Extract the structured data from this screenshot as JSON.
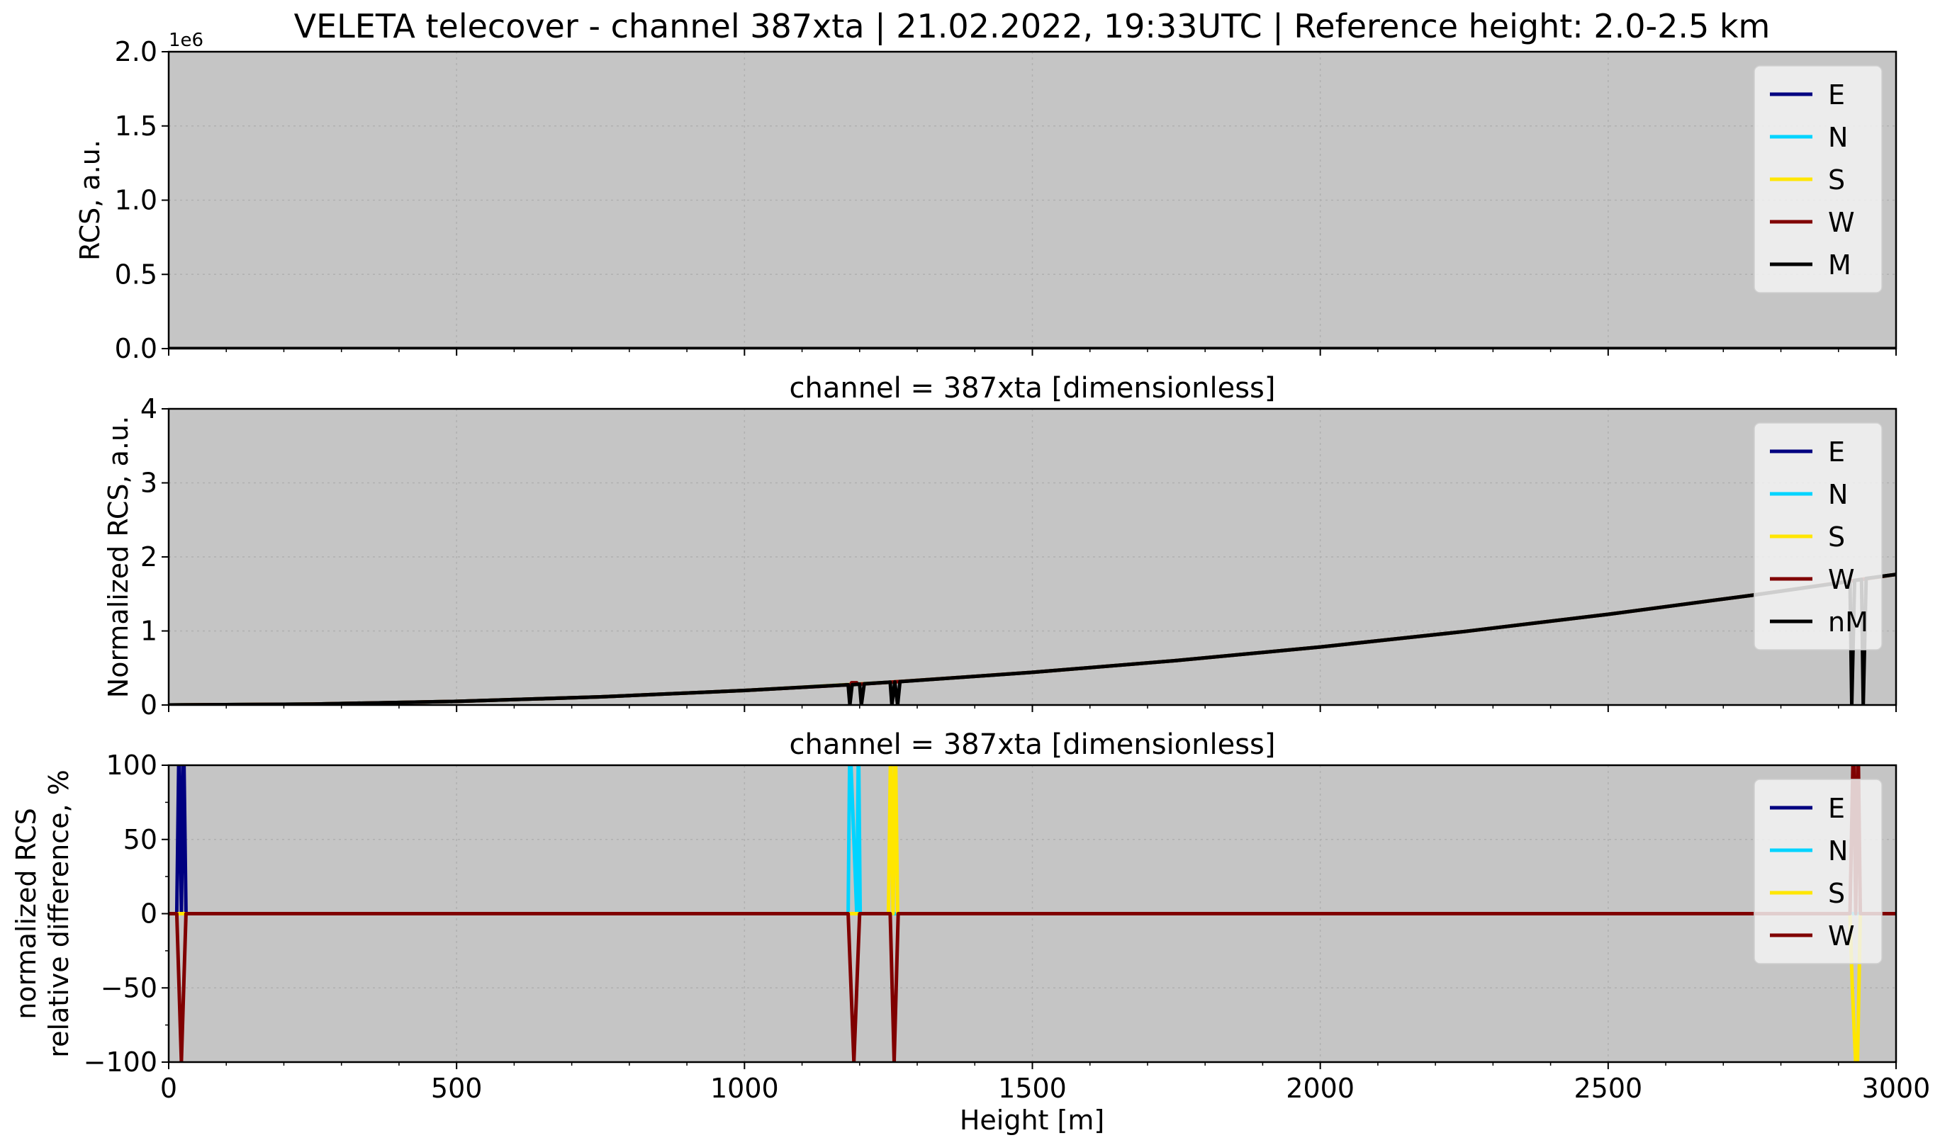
{
  "figure": {
    "title": "VELETA telecover - channel 387xta | 21.02.2022, 19:33UTC | Reference height: 2.0-2.5 km",
    "xlabel": "Height [m]"
  },
  "colors": {
    "E": "#000080",
    "N": "#00d4ff",
    "S": "#ffe600",
    "W": "#800000",
    "M": "#000000",
    "plot_bg": "#c5c5c5",
    "legend_bg": "#f2f2f2",
    "grid": "#b0b0b0"
  },
  "chart_data": [
    {
      "type": "line",
      "title": "",
      "ylabel": "RCS, a.u.",
      "offset_text": "1e6",
      "xlim": [
        0,
        3000
      ],
      "ylim": [
        0,
        2000000
      ],
      "yticks": [
        0,
        500000,
        1000000,
        1500000,
        2000000
      ],
      "ytick_labels": [
        "0.0",
        "0.5",
        "1.0",
        "1.5",
        "2.0"
      ],
      "grid": true,
      "legend_position": "top-right",
      "series": [
        {
          "name": "E",
          "x": [
            0,
            3000
          ],
          "y": [
            0,
            0
          ]
        },
        {
          "name": "N",
          "x": [
            0,
            3000
          ],
          "y": [
            0,
            0
          ]
        },
        {
          "name": "S",
          "x": [
            0,
            3000
          ],
          "y": [
            0,
            0
          ]
        },
        {
          "name": "W",
          "x": [
            0,
            3000
          ],
          "y": [
            0,
            0
          ]
        },
        {
          "name": "M",
          "x": [
            0,
            3000
          ],
          "y": [
            0,
            0
          ]
        }
      ]
    },
    {
      "type": "line",
      "title": "channel = 387xta [dimensionless]",
      "ylabel": "Normalized RCS, a.u.",
      "xlim": [
        0,
        3000
      ],
      "ylim": [
        0,
        4
      ],
      "yticks": [
        0,
        1,
        2,
        3,
        4
      ],
      "ytick_labels": [
        "0",
        "1",
        "2",
        "3",
        "4"
      ],
      "grid": true,
      "legend_position": "top-right",
      "series": [
        {
          "name": "E",
          "x": [
            0,
            250,
            500,
            750,
            1000,
            1250,
            1500,
            1750,
            2000,
            2250,
            2500,
            2750,
            3000
          ],
          "y": [
            0,
            0.012,
            0.049,
            0.11,
            0.196,
            0.306,
            0.441,
            0.6,
            0.784,
            0.992,
            1.225,
            1.482,
            1.764
          ]
        },
        {
          "name": "N",
          "x": [
            0,
            250,
            500,
            750,
            1000,
            1250,
            1500,
            1750,
            2000,
            2250,
            2500,
            2750,
            3000
          ],
          "y": [
            0,
            0.012,
            0.049,
            0.11,
            0.196,
            0.306,
            0.441,
            0.6,
            0.784,
            0.992,
            1.225,
            1.482,
            1.764
          ]
        },
        {
          "name": "S",
          "x": [
            0,
            250,
            500,
            750,
            1000,
            1250,
            1500,
            1750,
            2000,
            2250,
            2500,
            2750,
            3000
          ],
          "y": [
            0,
            0.012,
            0.049,
            0.11,
            0.196,
            0.306,
            0.441,
            0.6,
            0.784,
            0.992,
            1.225,
            1.482,
            1.764
          ]
        },
        {
          "name": "W",
          "x": [
            0,
            250,
            500,
            750,
            1000,
            1185,
            1186,
            1195,
            1196,
            1250,
            1500,
            1750,
            2000,
            2250,
            2500,
            2750,
            3000
          ],
          "y": [
            0,
            0.012,
            0.049,
            0.11,
            0.196,
            0.275,
            0.3,
            0.3,
            0.28,
            0.306,
            0.441,
            0.6,
            0.784,
            0.992,
            1.225,
            1.482,
            1.764
          ]
        },
        {
          "name": "nM",
          "x": [
            0,
            250,
            500,
            750,
            1000,
            1180,
            1183,
            1187,
            1200,
            1203,
            1208,
            1253,
            1256,
            1261,
            1266,
            1270,
            1500,
            1750,
            2000,
            2250,
            2500,
            2750,
            2920,
            2923,
            2928,
            2940,
            2943,
            2948,
            3000
          ],
          "y": [
            0,
            0.012,
            0.049,
            0.11,
            0.196,
            0.273,
            0,
            0.274,
            0.282,
            0,
            0.286,
            0.308,
            0,
            0.311,
            0,
            0.316,
            0.441,
            0.6,
            0.784,
            0.992,
            1.225,
            1.482,
            1.67,
            0,
            1.68,
            1.697,
            0,
            1.71,
            1.764
          ]
        }
      ]
    },
    {
      "type": "line",
      "title": "channel = 387xta [dimensionless]",
      "ylabel": "normalized RCS\nrelative difference, %",
      "xlim": [
        0,
        3000
      ],
      "ylim": [
        -100,
        100
      ],
      "yticks": [
        -100,
        -50,
        0,
        50,
        100
      ],
      "ytick_labels": [
        "−100",
        "−50",
        "0",
        "50",
        "100"
      ],
      "xticks": [
        0,
        500,
        1000,
        1500,
        2000,
        2500,
        3000
      ],
      "xtick_labels": [
        "0",
        "500",
        "1000",
        "1500",
        "2000",
        "2500",
        "3000"
      ],
      "grid": true,
      "legend_position": "top-right",
      "series": [
        {
          "name": "E",
          "x": [
            0,
            14,
            18,
            22,
            26,
            30,
            3000
          ],
          "y": [
            0,
            0,
            120,
            0,
            120,
            0,
            0
          ]
        },
        {
          "name": "N",
          "x": [
            0,
            1180,
            1183,
            1195,
            1198,
            1201,
            3000
          ],
          "y": [
            0,
            0,
            120,
            0,
            120,
            0,
            0
          ]
        },
        {
          "name": "S",
          "x": [
            0,
            1250,
            1254,
            1258,
            1262,
            1266,
            2920,
            2924,
            2932,
            2938,
            2944,
            3000
          ],
          "y": [
            0,
            0,
            120,
            0,
            120,
            0,
            0,
            -50,
            -120,
            0,
            0,
            0
          ]
        },
        {
          "name": "W",
          "x": [
            0,
            14,
            22,
            30,
            1180,
            1190,
            1200,
            1253,
            1260,
            1267,
            2920,
            2926,
            2930,
            2934,
            2938,
            3000
          ],
          "y": [
            0,
            0,
            -100,
            0,
            0,
            -100,
            0,
            0,
            -100,
            0,
            0,
            120,
            0,
            120,
            0,
            0
          ]
        }
      ]
    }
  ]
}
